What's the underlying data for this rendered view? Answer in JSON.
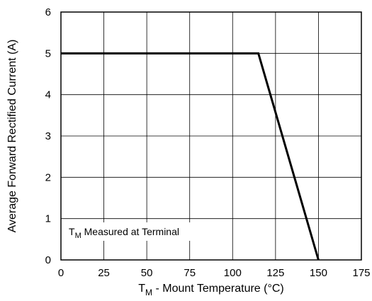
{
  "chart_data": {
    "type": "line",
    "title": "",
    "xlabel": {
      "main": "T",
      "sub": "M",
      "rest": " - Mount Temperature (°C)"
    },
    "ylabel": "Average Forward Rectified Current (A)",
    "xlim": [
      0,
      175
    ],
    "ylim": [
      0,
      6
    ],
    "xticks": [
      0,
      25,
      50,
      75,
      100,
      125,
      150,
      175
    ],
    "yticks": [
      0,
      1,
      2,
      3,
      4,
      5,
      6
    ],
    "grid": true,
    "series": [
      {
        "x": [
          0,
          115,
          150
        ],
        "y": [
          5,
          5,
          0
        ],
        "color": "#000000"
      }
    ],
    "annotation": {
      "main": "T",
      "sub": "M",
      "rest": " Measured at Terminal"
    }
  }
}
